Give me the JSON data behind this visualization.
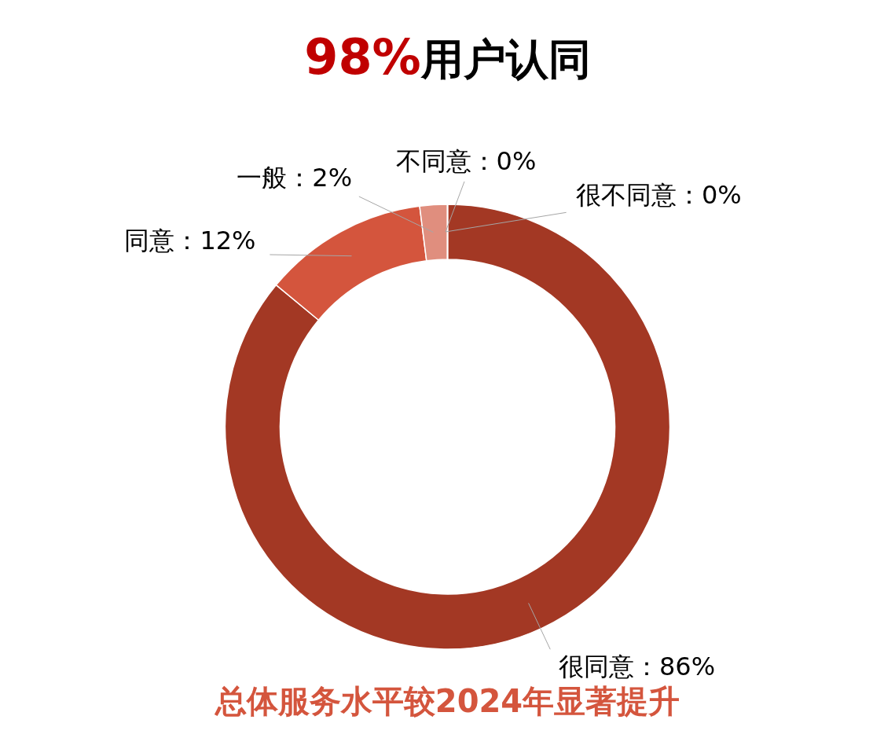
{
  "chart_data": {
    "type": "donut",
    "title": "98%用户认同",
    "annotations": [
      "总体服务水平较2024年显著提升"
    ],
    "categories": [
      "很同意",
      "同意",
      "一般",
      "不同意",
      "很不同意"
    ],
    "values": [
      86,
      12,
      2,
      0,
      0
    ],
    "value_labels": [
      "：86%",
      "：12%",
      "：2%",
      "：0%",
      "：0%"
    ],
    "colors": [
      "#a33824",
      "#d4553d",
      "#e08e7e",
      "#e08e7e",
      "#a33824"
    ]
  }
}
